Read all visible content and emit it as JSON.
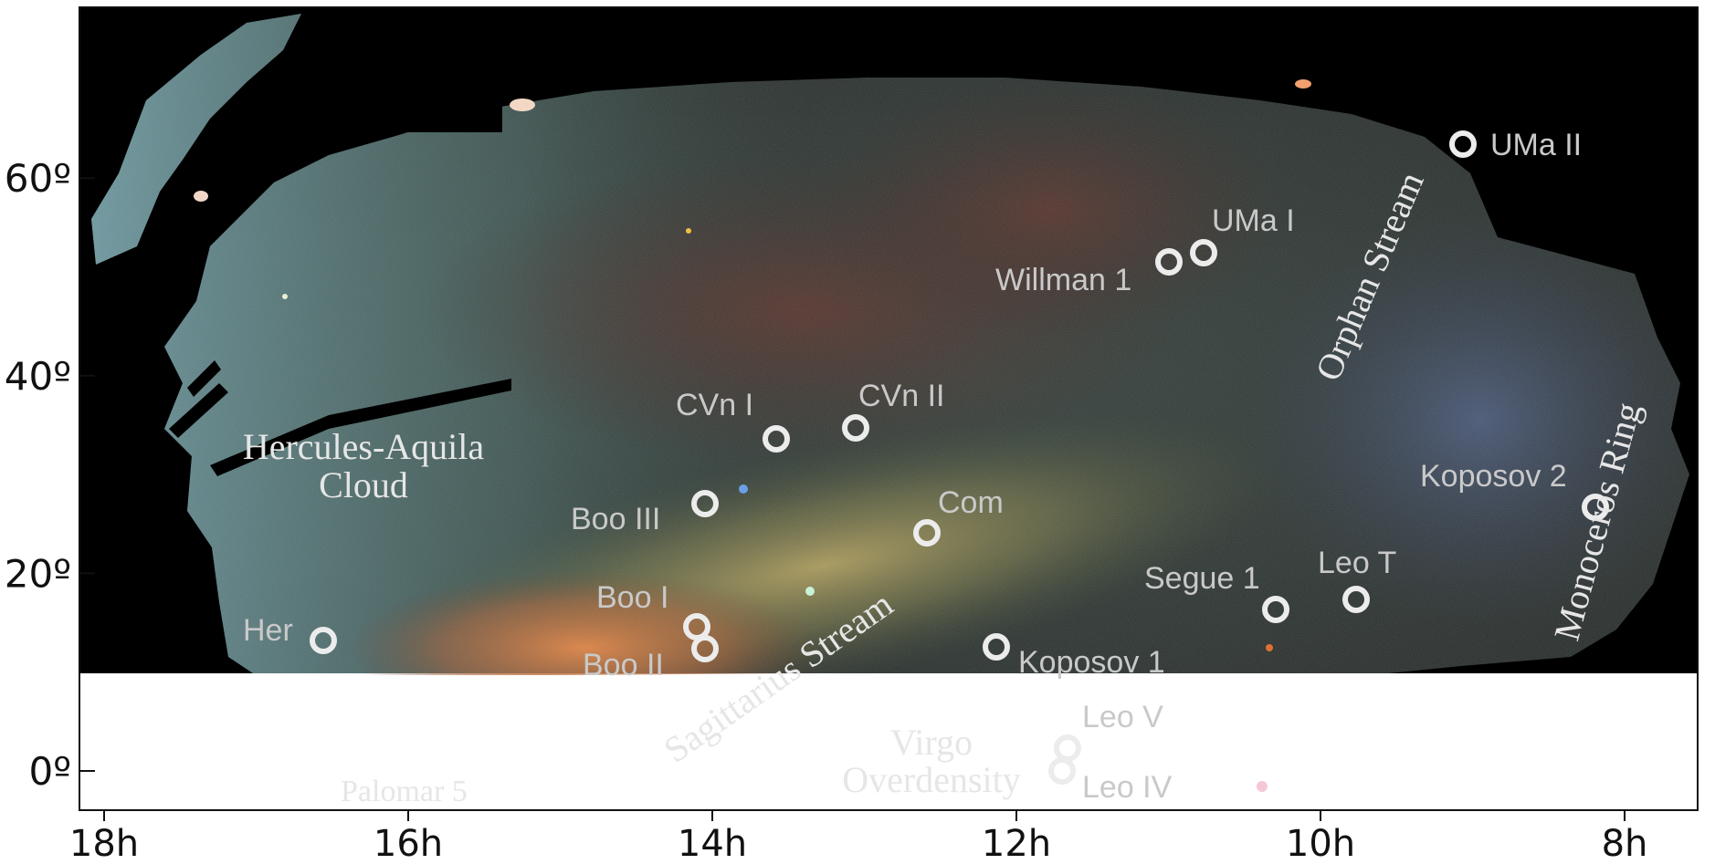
{
  "figure": {
    "dec_axis": {
      "ticks": [
        "0º",
        "20º",
        "40º",
        "60º"
      ],
      "values": [
        0,
        20,
        40,
        60
      ]
    },
    "ra_axis": {
      "ticks": [
        "18h",
        "16h",
        "14h",
        "12h",
        "10h",
        "8h"
      ],
      "values": [
        18,
        16,
        14,
        12,
        10,
        8
      ]
    },
    "objects": [
      {
        "id": "uma2",
        "label": "UMa II"
      },
      {
        "id": "uma1",
        "label": "UMa I"
      },
      {
        "id": "willman1",
        "label": "Willman 1"
      },
      {
        "id": "cvn1",
        "label": "CVn I"
      },
      {
        "id": "cvn2",
        "label": "CVn II"
      },
      {
        "id": "boo3",
        "label": "Boo III"
      },
      {
        "id": "com",
        "label": "Com"
      },
      {
        "id": "boo1",
        "label": "Boo I"
      },
      {
        "id": "boo2",
        "label": "Boo II"
      },
      {
        "id": "her",
        "label": "Her"
      },
      {
        "id": "koposov1",
        "label": "Koposov 1"
      },
      {
        "id": "segue1",
        "label": "Segue 1"
      },
      {
        "id": "leot",
        "label": "Leo T"
      },
      {
        "id": "koposov2",
        "label": "Koposov 2"
      },
      {
        "id": "leo5",
        "label": "Leo V"
      },
      {
        "id": "leo4",
        "label": "Leo IV"
      },
      {
        "id": "palomar5",
        "label": "Palomar 5"
      }
    ],
    "features": {
      "hercules_aquila_line1": "Hercules-Aquila",
      "hercules_aquila_line2": "Cloud",
      "sagittarius": "Sagittarius Stream",
      "orphan": "Orphan Stream",
      "monoceros": "Monoceros Ring",
      "virgo_line1": "Virgo",
      "virgo_line2": "Overdensity"
    }
  }
}
